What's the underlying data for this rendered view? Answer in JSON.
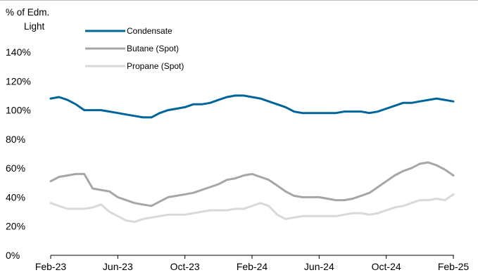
{
  "chart_data": {
    "type": "line",
    "title": "",
    "ylabel": [
      "% of Edm.",
      "Light"
    ],
    "xlabel": "",
    "ylim": [
      0,
      140
    ],
    "yticks": [
      0,
      20,
      40,
      60,
      80,
      100,
      120,
      140
    ],
    "ytick_labels": [
      "0%",
      "20%",
      "40%",
      "60%",
      "80%",
      "100%",
      "120%",
      "140%"
    ],
    "x_ticks": [
      "Feb-23",
      "Jun-23",
      "Oct-23",
      "Feb-24",
      "Jun-24",
      "Oct-24",
      "Feb-25"
    ],
    "x_tick_months": [
      0,
      4,
      8,
      12,
      16,
      20,
      24
    ],
    "grid": false,
    "legend_position": "top-left",
    "x_months": [
      0,
      0.5,
      1,
      1.5,
      2,
      2.5,
      3,
      3.5,
      4,
      4.5,
      5,
      5.5,
      6,
      6.5,
      7,
      7.5,
      8,
      8.5,
      9,
      9.5,
      10,
      10.5,
      11,
      11.5,
      12,
      12.5,
      13,
      13.5,
      14,
      14.5,
      15,
      15.5,
      16,
      16.5,
      17,
      17.5,
      18,
      18.5,
      19,
      19.5,
      20,
      20.5,
      21,
      21.5,
      22,
      22.5,
      23,
      23.5,
      24
    ],
    "series": [
      {
        "name": "Condensate",
        "color": "#006699",
        "values": [
          108,
          109,
          107,
          104,
          100,
          100,
          100,
          99,
          98,
          97,
          96,
          95,
          95,
          98,
          100,
          101,
          102,
          104,
          104,
          105,
          107,
          109,
          110,
          110,
          109,
          108,
          106,
          104,
          102,
          99,
          98,
          98,
          98,
          98,
          98,
          99,
          99,
          99,
          98,
          99,
          101,
          103,
          105,
          105,
          106,
          107,
          108,
          107,
          106
        ]
      },
      {
        "name": "Butane (Spot)",
        "color": "#a6a6a6",
        "values": [
          51,
          54,
          55,
          56,
          56,
          46,
          45,
          44,
          40,
          38,
          36,
          35,
          34,
          37,
          40,
          41,
          42,
          43,
          45,
          47,
          49,
          52,
          53,
          55,
          56,
          54,
          52,
          48,
          44,
          41,
          40,
          40,
          40,
          39,
          38,
          38,
          39,
          41,
          43,
          47,
          51,
          55,
          58,
          60,
          63,
          64,
          62,
          59,
          55
        ]
      },
      {
        "name": "Propane (Spot)",
        "color": "#d9d9d9",
        "values": [
          36,
          34,
          32,
          32,
          32,
          33,
          35,
          30,
          27,
          24,
          23,
          25,
          26,
          27,
          28,
          28,
          28,
          29,
          30,
          31,
          31,
          31,
          32,
          32,
          34,
          36,
          34,
          28,
          25,
          26,
          27,
          27,
          27,
          27,
          27,
          28,
          29,
          29,
          28,
          29,
          31,
          33,
          34,
          36,
          38,
          38,
          39,
          38,
          42
        ]
      }
    ]
  }
}
